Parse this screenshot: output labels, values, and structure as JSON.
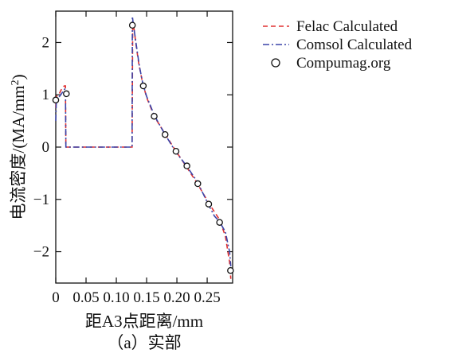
{
  "chart_data": {
    "type": "line",
    "xlabel": "距A3点距离/mm",
    "ylabel_main": "电流密度/(MA/mm",
    "ylabel_sup": "2",
    "ylabel_close": ")",
    "caption": "（a）实部",
    "xlim": [
      0,
      0.292
    ],
    "ylim": [
      -2.6,
      2.6
    ],
    "xticks": [
      0,
      0.05,
      0.1,
      0.15,
      0.2,
      0.25
    ],
    "xtick_labels": [
      "0",
      "0.05",
      "0.10",
      "0.15",
      "0.20",
      "0.25"
    ],
    "yticks": [
      -2,
      -1,
      0,
      1,
      2
    ],
    "ytick_labels": [
      "−2",
      "−1",
      "0",
      "1",
      "2"
    ],
    "legend_position": "top-right",
    "series": [
      {
        "name": "Felac Calculated",
        "style": "dashed",
        "color": "#e03030",
        "points": [
          [
            0,
            0.75
          ],
          [
            0.001,
            0.97
          ],
          [
            0.005,
            1.0
          ],
          [
            0.01,
            1.12
          ],
          [
            0.014,
            1.17
          ],
          [
            0.016,
            1.17
          ],
          [
            0.0167,
            0.0
          ],
          [
            0.126,
            0.0
          ],
          [
            0.127,
            2.3
          ],
          [
            0.1285,
            2.33
          ],
          [
            0.132,
            2.0
          ],
          [
            0.137,
            1.6
          ],
          [
            0.143,
            1.25
          ],
          [
            0.15,
            0.95
          ],
          [
            0.163,
            0.58
          ],
          [
            0.18,
            0.26
          ],
          [
            0.198,
            -0.07
          ],
          [
            0.216,
            -0.38
          ],
          [
            0.234,
            -0.7
          ],
          [
            0.253,
            -1.08
          ],
          [
            0.27,
            -1.38
          ],
          [
            0.28,
            -1.7
          ],
          [
            0.287,
            -2.2
          ],
          [
            0.289,
            -2.52
          ]
        ]
      },
      {
        "name": "Comsol Calculated",
        "style": "dashdot",
        "color": "#3a44a8",
        "points": [
          [
            0,
            0.5
          ],
          [
            0.001,
            0.92
          ],
          [
            0.005,
            0.95
          ],
          [
            0.01,
            1.03
          ],
          [
            0.014,
            1.1
          ],
          [
            0.016,
            1.12
          ],
          [
            0.0167,
            0.0
          ],
          [
            0.126,
            0.0
          ],
          [
            0.1265,
            2.5
          ],
          [
            0.128,
            2.35
          ],
          [
            0.133,
            1.95
          ],
          [
            0.138,
            1.55
          ],
          [
            0.144,
            1.2
          ],
          [
            0.15,
            0.97
          ],
          [
            0.163,
            0.6
          ],
          [
            0.18,
            0.25
          ],
          [
            0.198,
            -0.09
          ],
          [
            0.216,
            -0.36
          ],
          [
            0.234,
            -0.67
          ],
          [
            0.253,
            -1.12
          ],
          [
            0.262,
            -1.32
          ],
          [
            0.27,
            -1.42
          ],
          [
            0.28,
            -1.62
          ],
          [
            0.287,
            -2.0
          ],
          [
            0.289,
            -2.28
          ]
        ]
      },
      {
        "name": "Compumag.org",
        "style": "markers",
        "color": "#111111",
        "points": [
          [
            0,
            0.9
          ],
          [
            0.0175,
            1.02
          ],
          [
            0.1265,
            2.33
          ],
          [
            0.1445,
            1.17
          ],
          [
            0.1625,
            0.59
          ],
          [
            0.1805,
            0.24
          ],
          [
            0.1985,
            -0.08
          ],
          [
            0.2165,
            -0.36
          ],
          [
            0.2345,
            -0.7
          ],
          [
            0.2525,
            -1.09
          ],
          [
            0.2705,
            -1.44
          ],
          [
            0.2885,
            -2.36
          ]
        ]
      }
    ]
  }
}
